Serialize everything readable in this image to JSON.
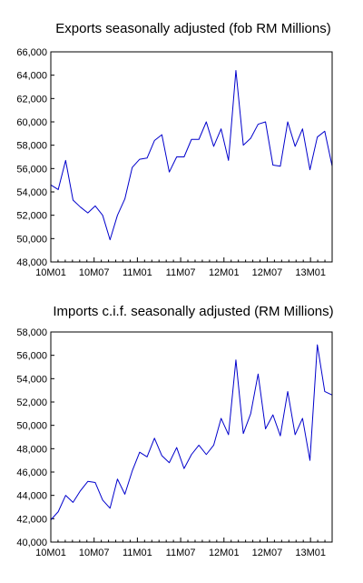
{
  "chart_data": [
    {
      "type": "line",
      "title": "Exports seasonally adjusted (fob RM Millions)",
      "xlabel": "",
      "ylabel": "",
      "x_tick_labels": [
        "10M01",
        "10M07",
        "11M01",
        "11M07",
        "12M01",
        "12M07",
        "13M01"
      ],
      "x_tick_months": [
        0,
        6,
        12,
        18,
        24,
        30,
        36
      ],
      "x_months_total": 39,
      "ylim": [
        48000,
        66000
      ],
      "y_ticks": [
        48000,
        50000,
        52000,
        54000,
        56000,
        58000,
        60000,
        62000,
        64000,
        66000
      ],
      "y_tick_labels": [
        "48,000",
        "50,000",
        "52,000",
        "54,000",
        "56,000",
        "58,000",
        "60,000",
        "62,000",
        "64,000",
        "66,000"
      ],
      "grid": false,
      "legend": "none",
      "series": [
        {
          "color": "#0000cc",
          "values": [
            54600,
            54200,
            56700,
            53300,
            52700,
            52200,
            52800,
            52000,
            49900,
            52000,
            53400,
            56100,
            56800,
            56900,
            58400,
            58900,
            55700,
            57000,
            57000,
            58500,
            58500,
            60000,
            57900,
            59400,
            56700,
            64400,
            58000,
            58600,
            59800,
            60000,
            56300,
            56200,
            60000,
            57900,
            59400,
            55900,
            58700,
            59200,
            56200
          ]
        }
      ]
    },
    {
      "type": "line",
      "title": "Imports c.i.f. seasonally adjusted (RM Millions)",
      "xlabel": "",
      "ylabel": "",
      "x_tick_labels": [
        "10M01",
        "10M07",
        "11M01",
        "11M07",
        "12M01",
        "12M07",
        "13M01"
      ],
      "x_tick_months": [
        0,
        6,
        12,
        18,
        24,
        30,
        36
      ],
      "x_months_total": 39,
      "ylim": [
        40000,
        58000
      ],
      "y_ticks": [
        40000,
        42000,
        44000,
        46000,
        48000,
        50000,
        52000,
        54000,
        56000,
        58000
      ],
      "y_tick_labels": [
        "40,000",
        "42,000",
        "44,000",
        "46,000",
        "48,000",
        "50,000",
        "52,000",
        "54,000",
        "56,000",
        "58,000"
      ],
      "grid": false,
      "legend": "none",
      "series": [
        {
          "color": "#0000cc",
          "values": [
            41900,
            42600,
            44000,
            43400,
            44400,
            45200,
            45100,
            43600,
            42900,
            45400,
            44100,
            46100,
            47700,
            47300,
            48900,
            47400,
            46800,
            48100,
            46300,
            47500,
            48300,
            47500,
            48300,
            50600,
            49200,
            55600,
            49300,
            51000,
            54400,
            49700,
            50900,
            49100,
            52900,
            49200,
            50600,
            47000,
            56900,
            52900,
            52600
          ]
        }
      ]
    }
  ]
}
